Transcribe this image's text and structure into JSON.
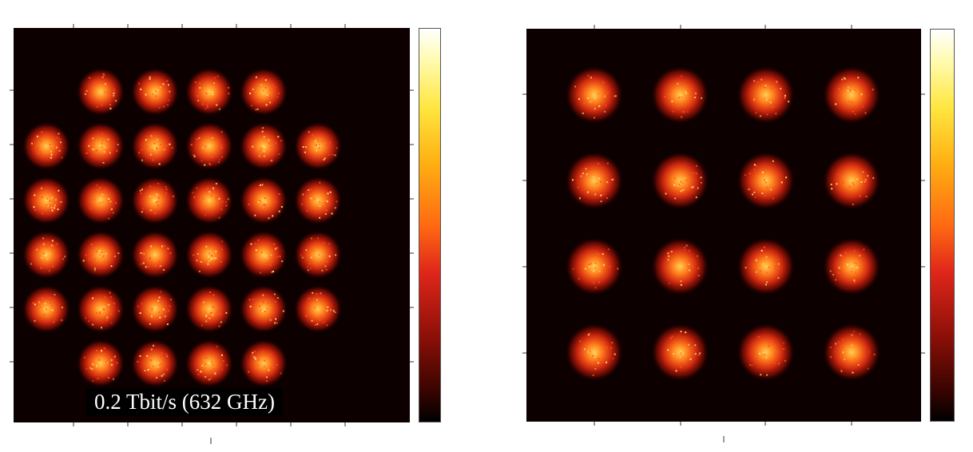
{
  "chart_data": [
    {
      "type": "scatter",
      "panel": "left",
      "title": "",
      "label": "0.2 Tbit/s (632 GHz)",
      "constellation": "32-QAM",
      "xlim": [
        -7,
        7
      ],
      "ylim": [
        -7,
        7
      ],
      "points": [
        {
          "x": -3,
          "y": 5
        },
        {
          "x": -1,
          "y": 5
        },
        {
          "x": 1,
          "y": 5
        },
        {
          "x": 3,
          "y": 5
        },
        {
          "x": -5,
          "y": 3
        },
        {
          "x": -3,
          "y": 3
        },
        {
          "x": -1,
          "y": 3
        },
        {
          "x": 1,
          "y": 3
        },
        {
          "x": 3,
          "y": 3
        },
        {
          "x": 5,
          "y": 3
        },
        {
          "x": -5,
          "y": 1
        },
        {
          "x": -3,
          "y": 1
        },
        {
          "x": -1,
          "y": 1
        },
        {
          "x": 1,
          "y": 1
        },
        {
          "x": 3,
          "y": 1
        },
        {
          "x": 5,
          "y": 1
        },
        {
          "x": -5,
          "y": -1
        },
        {
          "x": -3,
          "y": -1
        },
        {
          "x": -1,
          "y": -1
        },
        {
          "x": 1,
          "y": -1
        },
        {
          "x": 3,
          "y": -1
        },
        {
          "x": 5,
          "y": -1
        },
        {
          "x": -5,
          "y": -3
        },
        {
          "x": -3,
          "y": -3
        },
        {
          "x": -1,
          "y": -3
        },
        {
          "x": 1,
          "y": -3
        },
        {
          "x": 3,
          "y": -3
        },
        {
          "x": 5,
          "y": -3
        },
        {
          "x": -3,
          "y": -5
        },
        {
          "x": -1,
          "y": -5
        },
        {
          "x": 1,
          "y": -5
        },
        {
          "x": 3,
          "y": -5
        }
      ],
      "colormap": "hot",
      "colorbar": true,
      "colors": {
        "background": "#0c0000",
        "outer": "#b01808",
        "mid": "#f04818",
        "core": "#ffb030"
      }
    },
    {
      "type": "scatter",
      "panel": "right",
      "title": "",
      "constellation": "16-QAM",
      "xlim": [
        -4,
        4
      ],
      "ylim": [
        -4,
        4
      ],
      "points": [
        {
          "x": -3,
          "y": 3
        },
        {
          "x": -1,
          "y": 3
        },
        {
          "x": 1,
          "y": 3
        },
        {
          "x": 3,
          "y": 3
        },
        {
          "x": -3,
          "y": 1
        },
        {
          "x": -1,
          "y": 1
        },
        {
          "x": 1,
          "y": 1
        },
        {
          "x": 3,
          "y": 1
        },
        {
          "x": -3,
          "y": -1
        },
        {
          "x": -1,
          "y": -1
        },
        {
          "x": 1,
          "y": -1
        },
        {
          "x": 3,
          "y": -1
        },
        {
          "x": -3,
          "y": -3
        },
        {
          "x": -1,
          "y": -3
        },
        {
          "x": 1,
          "y": -3
        },
        {
          "x": 3,
          "y": -3
        }
      ],
      "colormap": "hot",
      "colorbar": true,
      "colors": {
        "background": "#0c0000",
        "outer": "#b01808",
        "mid": "#f04818",
        "core": "#ffc040"
      }
    }
  ]
}
